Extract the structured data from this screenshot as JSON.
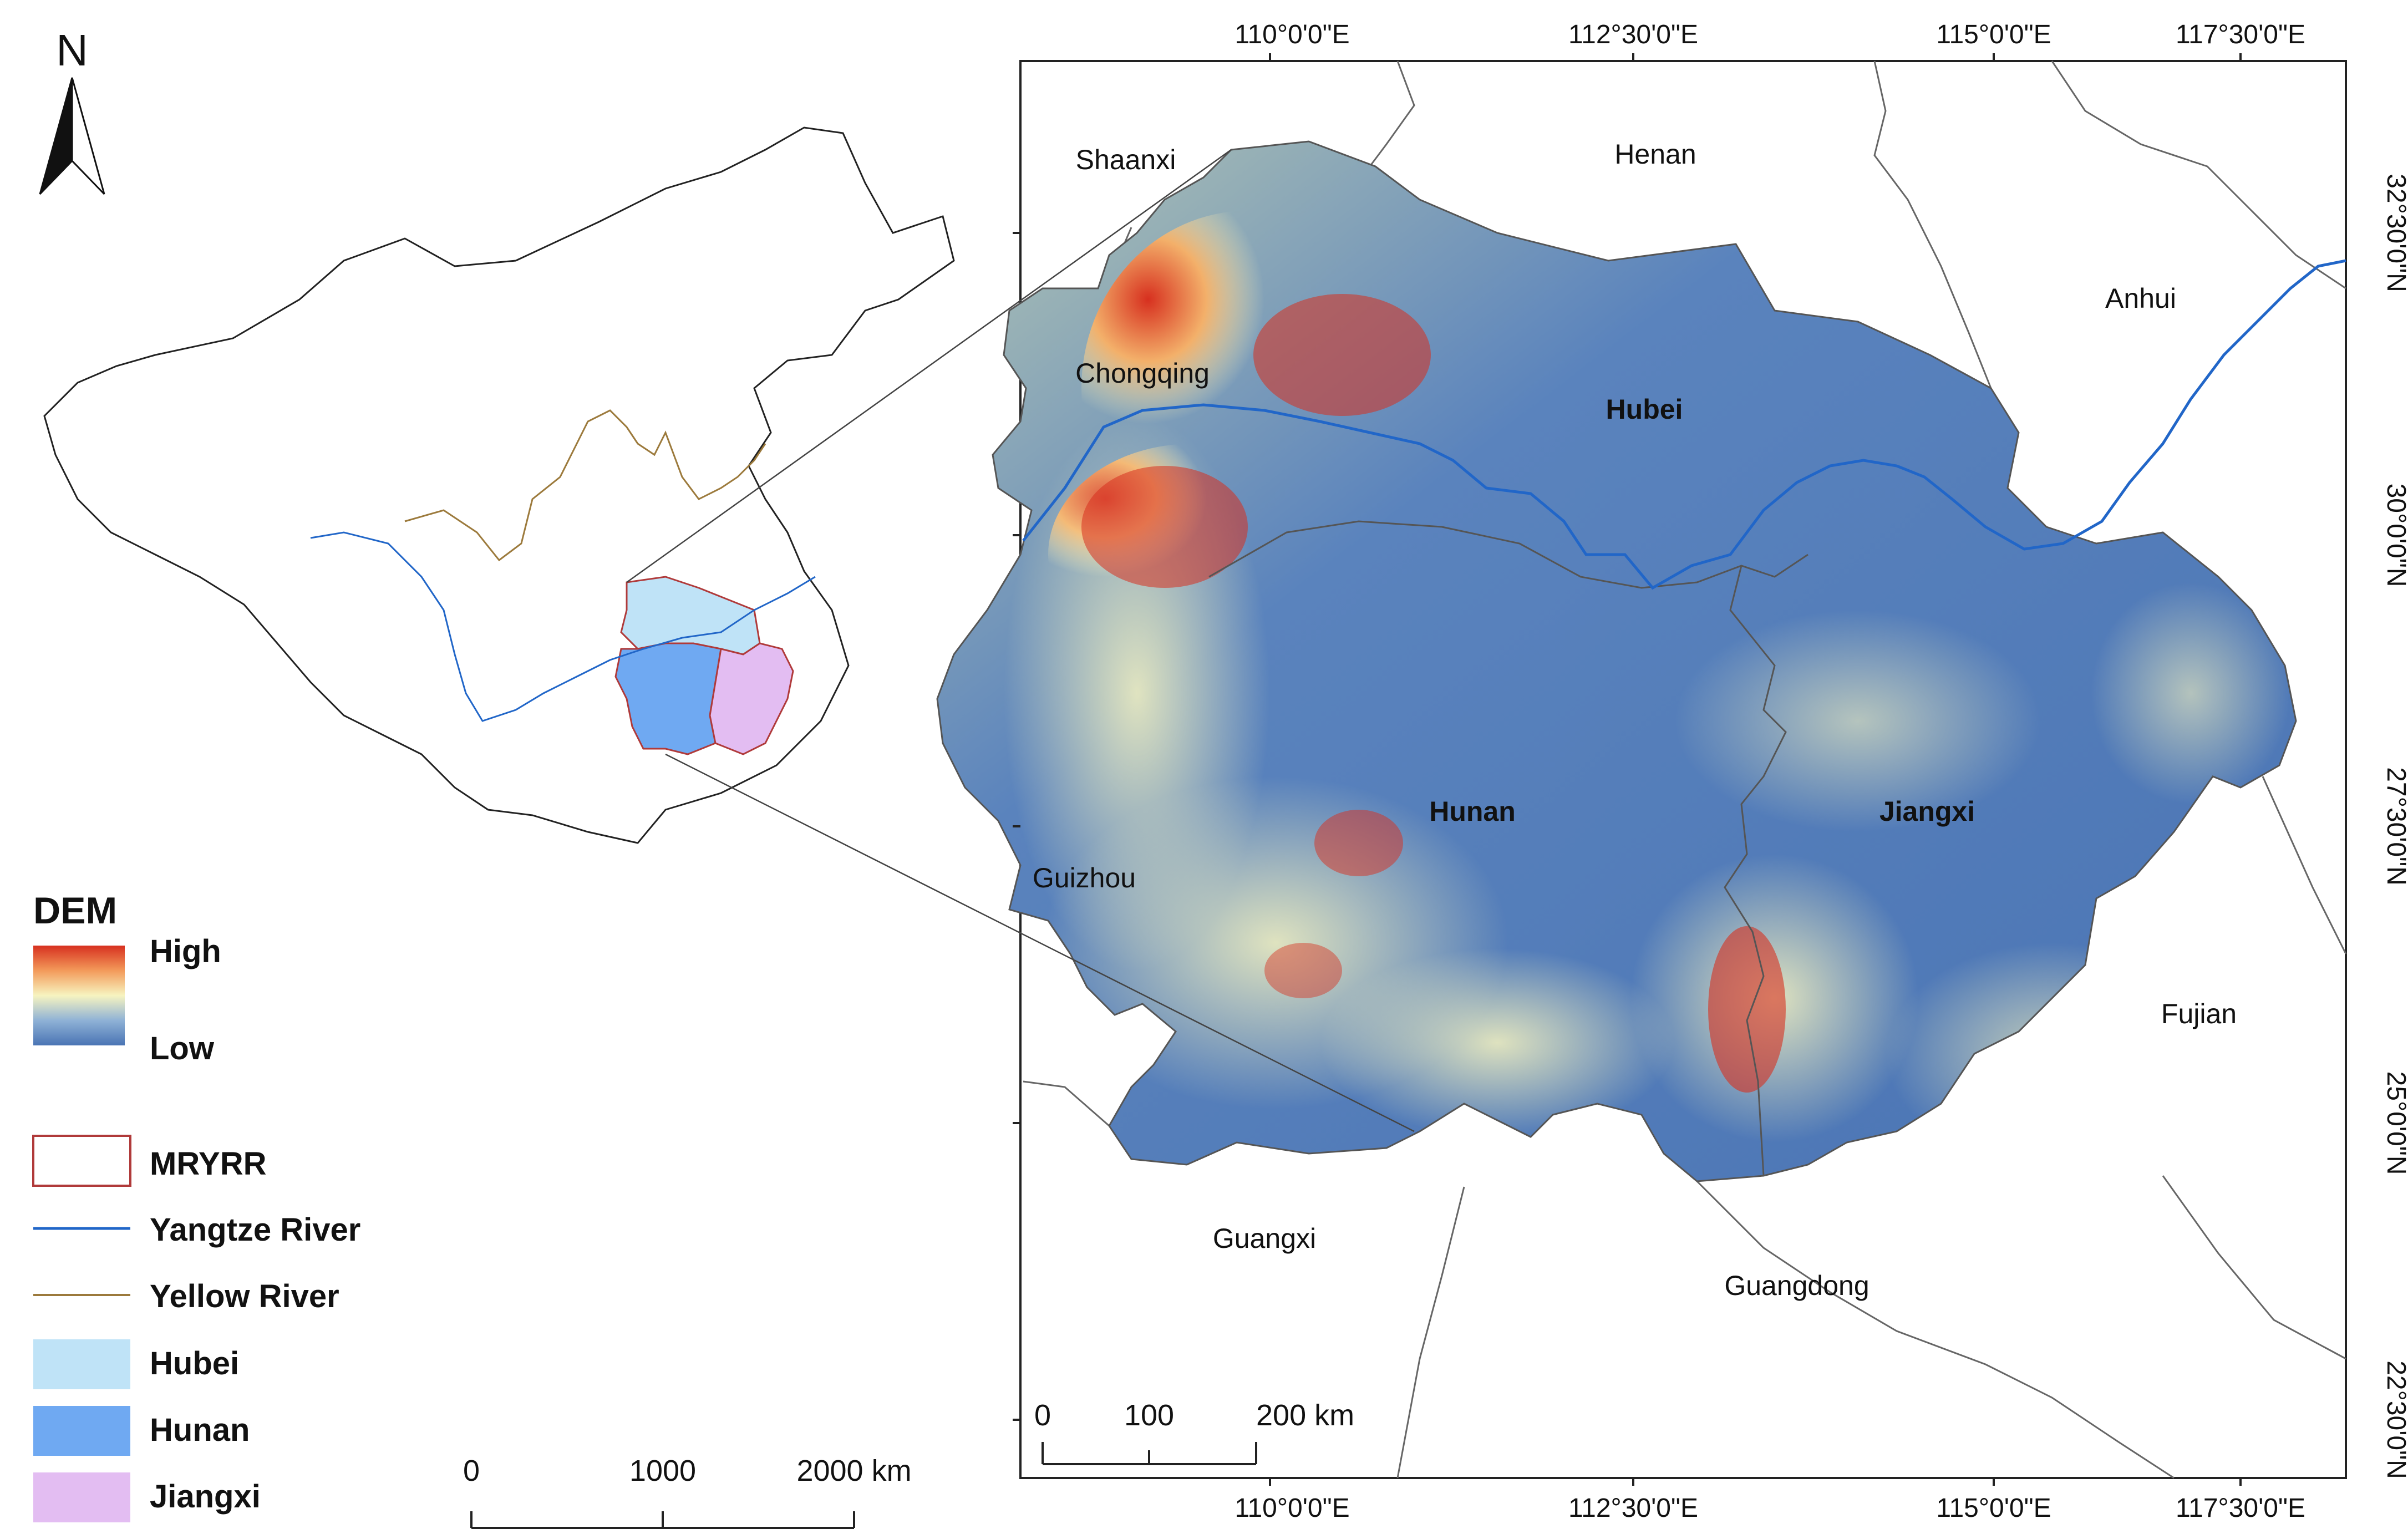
{
  "north_arrow": {
    "label": "N"
  },
  "legend": {
    "dem_title": "DEM",
    "dem_high": "High",
    "dem_low": "Low",
    "items": [
      {
        "label": "MRYRR",
        "kind": "outline",
        "color": "#b03a3a"
      },
      {
        "label": "Yangtze River",
        "kind": "line",
        "color": "#2166c8"
      },
      {
        "label": "Yellow River",
        "kind": "line",
        "color": "#9c7a3c"
      },
      {
        "label": "Hubei",
        "kind": "fill",
        "color": "#bfe3f7"
      },
      {
        "label": "Hunan",
        "kind": "fill",
        "color": "#6fa9f2"
      },
      {
        "label": "Jiangxi",
        "kind": "fill",
        "color": "#e3bdf2"
      }
    ]
  },
  "overview_scalebar": {
    "ticks": [
      "0",
      "1000",
      "2000 km"
    ]
  },
  "detail_scalebar": {
    "ticks": [
      "0",
      "100",
      "200 km"
    ]
  },
  "graticule": {
    "top_labels": [
      "110°0'0\"E",
      "112°30'0\"E",
      "115°0'0\"E",
      "117°30'0\"E"
    ],
    "bottom_labels": [
      "110°0'0\"E",
      "112°30'0\"E",
      "115°0'0\"E",
      "117°30'0\"E"
    ],
    "right_labels": [
      "32°30'0\"N",
      "30°0'0\"N",
      "27°30'0\"N",
      "25°0'0\"N",
      "22°30'0\"N"
    ]
  },
  "provinces": {
    "study": [
      "Hubei",
      "Hunan",
      "Jiangxi"
    ],
    "neighbors": [
      "Shaanxi",
      "Henan",
      "Anhui",
      "Chongqing",
      "Guizhou",
      "Fujian",
      "Guangxi",
      "Guangdong"
    ]
  },
  "colors": {
    "dem_high": "#d7301f",
    "dem_mid": "#f7f4c0",
    "dem_low": "#4a74b4",
    "boundary": "#555555",
    "river": "#2166c8"
  }
}
